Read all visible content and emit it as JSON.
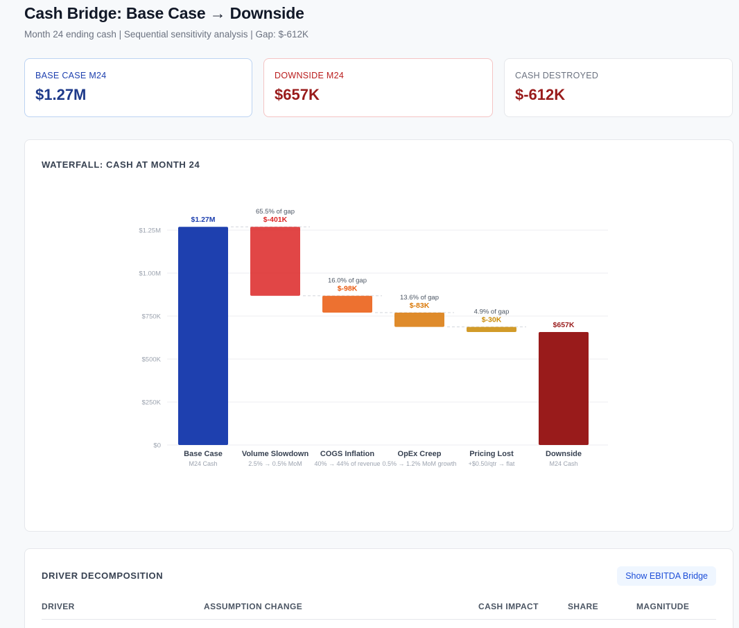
{
  "header": {
    "title": "Cash Bridge: Base Case → Downside",
    "subtitle": "Month 24 ending cash | Sequential sensitivity analysis | Gap: $-612K"
  },
  "kpis": {
    "base": {
      "label": "BASE CASE M24",
      "value": "$1.27M"
    },
    "downside": {
      "label": "DOWNSIDE M24",
      "value": "$657K"
    },
    "destroyed": {
      "label": "CASH DESTROYED",
      "value": "$-612K"
    }
  },
  "chart_card": {
    "title": "WATERFALL: CASH AT MONTH 24"
  },
  "table_card": {
    "title": "DRIVER DECOMPOSITION",
    "toggle_label": "Show EBITDA Bridge",
    "columns": [
      "DRIVER",
      "ASSUMPTION CHANGE",
      "CASH IMPACT",
      "SHARE",
      "MAGNITUDE"
    ]
  },
  "colors": {
    "base": "#1e40af",
    "downside": "#991b1b",
    "volume": "#dc2626",
    "cogs": "#ea580c",
    "opex": "#d97706",
    "pricing": "#ca8a04"
  },
  "chart_data": {
    "type": "waterfall",
    "title": "WATERFALL: CASH AT MONTH 24",
    "ylim": [
      0,
      1270
    ],
    "y_ticks": [
      0,
      250,
      500,
      750,
      1000,
      1250
    ],
    "y_tick_labels": [
      "$0",
      "$250K",
      "$500K",
      "$750K",
      "$1.00M",
      "$1.25M"
    ],
    "grid": true,
    "bars": [
      {
        "kind": "total",
        "label": "Base Case",
        "sublabel": "M24 Cash",
        "start": 0,
        "end": 1269,
        "value_label": "$1.27M",
        "share_label": "",
        "color_key": "base"
      },
      {
        "kind": "delta",
        "label": "Volume Slowdown",
        "sublabel": "2.5% → 0.5% MoM",
        "start": 1269,
        "end": 868,
        "value_label": "$-401K",
        "share_label": "65.5% of gap",
        "color_key": "volume"
      },
      {
        "kind": "delta",
        "label": "COGS Inflation",
        "sublabel": "40% → 44% of revenue",
        "start": 868,
        "end": 770,
        "value_label": "$-98K",
        "share_label": "16.0% of gap",
        "color_key": "cogs"
      },
      {
        "kind": "delta",
        "label": "OpEx Creep",
        "sublabel": "0.5% → 1.2% MoM growth",
        "start": 770,
        "end": 687,
        "value_label": "$-83K",
        "share_label": "13.6% of gap",
        "color_key": "opex"
      },
      {
        "kind": "delta",
        "label": "Pricing Lost",
        "sublabel": "+$0.50/qtr → flat",
        "start": 687,
        "end": 657,
        "value_label": "$-30K",
        "share_label": "4.9% of gap",
        "color_key": "pricing"
      },
      {
        "kind": "total",
        "label": "Downside",
        "sublabel": "M24 Cash",
        "start": 0,
        "end": 657,
        "value_label": "$657K",
        "share_label": "",
        "color_key": "downside"
      }
    ]
  }
}
